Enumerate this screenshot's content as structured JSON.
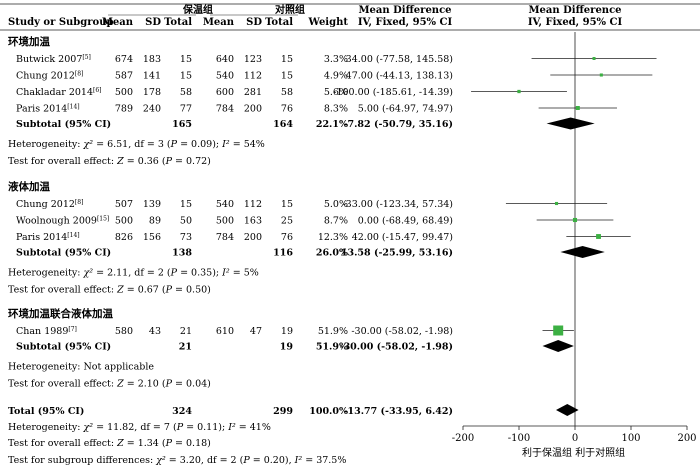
{
  "chart_data": {
    "type": "forest",
    "headers": {
      "study": "Study or Subgroup",
      "group_exp": "保温组",
      "group_ctrl": "对照组",
      "mean": "Mean",
      "sd": "SD",
      "total": "Total",
      "weight": "Weight",
      "md_title": "Mean Difference",
      "md_method": "IV, Fixed, 95% CI"
    },
    "subgroups": [
      {
        "name": "环境加温",
        "studies": [
          {
            "study": "Butwick 2007",
            "ref": "[5]",
            "e_mean": "674",
            "e_sd": "183",
            "e_total": "15",
            "c_mean": "640",
            "c_sd": "123",
            "c_total": "15",
            "weight": "3.3%",
            "ci_text": "34.00 (-77.58, 145.58)",
            "md": 34.0,
            "lo": -77.58,
            "hi": 145.58,
            "w": 3.3
          },
          {
            "study": "Chung 2012",
            "ref": "[8]",
            "e_mean": "587",
            "e_sd": "141",
            "e_total": "15",
            "c_mean": "540",
            "c_sd": "112",
            "c_total": "15",
            "weight": "4.9%",
            "ci_text": "47.00 (-44.13, 138.13)",
            "md": 47.0,
            "lo": -44.13,
            "hi": 138.13,
            "w": 4.9
          },
          {
            "study": "Chakladar 2014",
            "ref": "[6]",
            "e_mean": "500",
            "e_sd": "178",
            "e_total": "58",
            "c_mean": "600",
            "c_sd": "281",
            "c_total": "58",
            "weight": "5.6%",
            "ci_text": "-100.00 (-185.61, -14.39)",
            "md": -100.0,
            "lo": -185.61,
            "hi": -14.39,
            "w": 5.6
          },
          {
            "study": "Paris 2014",
            "ref": "[14]",
            "e_mean": "789",
            "e_sd": "240",
            "e_total": "77",
            "c_mean": "784",
            "c_sd": "200",
            "c_total": "76",
            "weight": "8.3%",
            "ci_text": "5.00 (-64.97, 74.97)",
            "md": 5.0,
            "lo": -64.97,
            "hi": 74.97,
            "w": 8.3
          }
        ],
        "subtotal": {
          "label": "Subtotal (95% CI)",
          "e_total": "165",
          "c_total": "164",
          "weight": "22.1%",
          "ci_text": "-7.82 (-50.79, 35.16)",
          "md": -7.82,
          "lo": -50.79,
          "hi": 35.16
        },
        "heterogeneity": "Heterogeneity: χ² = 6.51, df = 3 (P = 0.09); I² = 54%",
        "overall_test": "Test for overall effect: Z = 0.36 (P = 0.72)"
      },
      {
        "name": "液体加温",
        "studies": [
          {
            "study": "Chung 2012",
            "ref": "[8]",
            "e_mean": "507",
            "e_sd": "139",
            "e_total": "15",
            "c_mean": "540",
            "c_sd": "112",
            "c_total": "15",
            "weight": "5.0%",
            "ci_text": "-33.00 (-123.34, 57.34)",
            "md": -33.0,
            "lo": -123.34,
            "hi": 57.34,
            "w": 5.0
          },
          {
            "study": "Woolnough 2009",
            "ref": "[15]",
            "e_mean": "500",
            "e_sd": "89",
            "e_total": "50",
            "c_mean": "500",
            "c_sd": "163",
            "c_total": "25",
            "weight": "8.7%",
            "ci_text": "0.00 (-68.49, 68.49)",
            "md": 0.0,
            "lo": -68.49,
            "hi": 68.49,
            "w": 8.7
          },
          {
            "study": "Paris 2014",
            "ref": "[14]",
            "e_mean": "826",
            "e_sd": "156",
            "e_total": "73",
            "c_mean": "784",
            "c_sd": "200",
            "c_total": "76",
            "weight": "12.3%",
            "ci_text": "42.00 (-15.47, 99.47)",
            "md": 42.0,
            "lo": -15.47,
            "hi": 99.47,
            "w": 12.3
          }
        ],
        "subtotal": {
          "label": "Subtotal (95% CI)",
          "e_total": "138",
          "c_total": "116",
          "weight": "26.0%",
          "ci_text": "13.58 (-25.99, 53.16)",
          "md": 13.58,
          "lo": -25.99,
          "hi": 53.16
        },
        "heterogeneity": "Heterogeneity: χ² = 2.11, df = 2 (P = 0.35); I² = 5%",
        "overall_test": "Test for overall effect: Z = 0.67 (P = 0.50)"
      },
      {
        "name": "环境加温联合液体加温",
        "studies": [
          {
            "study": "Chan 1989",
            "ref": "[7]",
            "e_mean": "580",
            "e_sd": "43",
            "e_total": "21",
            "c_mean": "610",
            "c_sd": "47",
            "c_total": "19",
            "weight": "51.9%",
            "ci_text": "-30.00 (-58.02, -1.98)",
            "md": -30.0,
            "lo": -58.02,
            "hi": -1.98,
            "w": 51.9
          }
        ],
        "subtotal": {
          "label": "Subtotal (95% CI)",
          "e_total": "21",
          "c_total": "19",
          "weight": "51.9%",
          "ci_text": "-30.00 (-58.02, -1.98)",
          "md": -30.0,
          "lo": -58.02,
          "hi": -1.98
        },
        "heterogeneity": "Heterogeneity: Not applicable",
        "overall_test": "Test for overall effect: Z = 2.10 (P = 0.04)"
      }
    ],
    "total": {
      "label": "Total (95% CI)",
      "e_total": "324",
      "c_total": "299",
      "weight": "100.0%",
      "ci_text": "-13.77 (-33.95, 6.42)",
      "md": -13.77,
      "lo": -33.95,
      "hi": 6.42
    },
    "total_heterogeneity": "Heterogeneity: χ² = 11.82, df = 7 (P = 0.11); I² = 41%",
    "total_overall_test": "Test for overall effect: Z = 1.34 (P = 0.18)",
    "subgroup_test": "Test for subgroup differences: χ² = 3.20, df = 2 (P = 0.20), I² = 37.5%",
    "x_axis": {
      "range": [
        -200,
        200
      ],
      "ticks": [
        -200,
        -100,
        0,
        100,
        200
      ]
    },
    "favours_left": "利于保温组",
    "favours_right": "利于对照组",
    "colors": {
      "square": "#3cb043",
      "diamond": "#000000",
      "line": "#222222"
    }
  }
}
